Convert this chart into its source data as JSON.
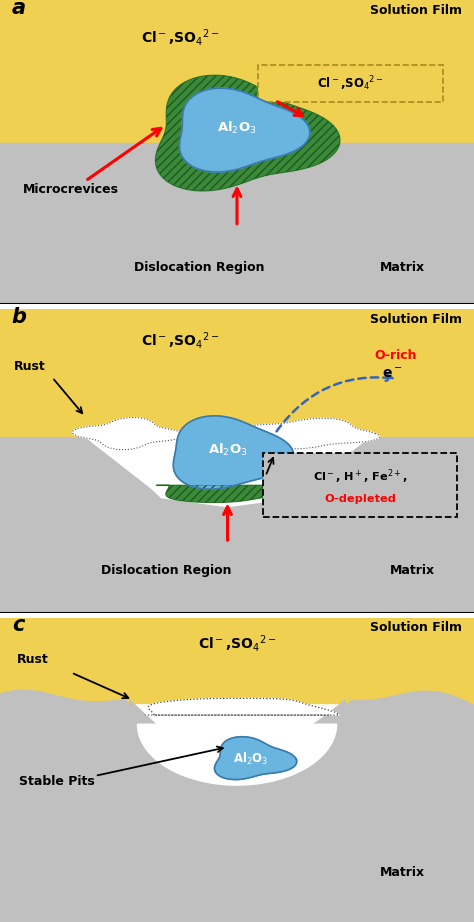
{
  "fig_width": 4.74,
  "fig_height": 9.22,
  "dpi": 100,
  "bg_color": "#ffffff",
  "solution_color": "#f0d050",
  "solution_color2": "#e8c830",
  "matrix_color": "#c0c0c0",
  "blue_color": "#6ab4e0",
  "green_color": "#3a8a3a",
  "green_dark": "#1e5a1e",
  "white": "#ffffff",
  "panel_a": {
    "label": "a",
    "solution_label": "Solution Film",
    "ion_label": "Cl$^-$,SO$_4$$^{2-}$",
    "box_label": "Cl$^-$,SO$_4$$^{2-}$",
    "al2o3_label": "Al$_2$O$_3$",
    "microcrevices_label": "Microcrevices",
    "dislocation_label": "Dislocation Region",
    "matrix_label": "Matrix"
  },
  "panel_b": {
    "label": "b",
    "solution_label": "Solution Film",
    "ion_label": "Cl$^-$,SO$_4$$^{2-}$",
    "orich_label": "O-rich",
    "electron_label": "e$^-$",
    "rust_label": "Rust",
    "al2o3_label": "Al$_2$O$_3$",
    "box_text1": "Cl$^-$, H$^+$, Fe$^{2+}$,",
    "box_text2": "O-depleted",
    "dislocation_label": "Dislocation Region",
    "matrix_label": "Matrix"
  },
  "panel_c": {
    "label": "c",
    "solution_label": "Solution Film",
    "ion_label": "Cl$^-$,SO$_4$$^{2-}$",
    "rust_label": "Rust",
    "al2o3_label": "Al$_2$O$_3$",
    "stable_pits_label": "Stable Pits",
    "matrix_label": "Matrix"
  }
}
